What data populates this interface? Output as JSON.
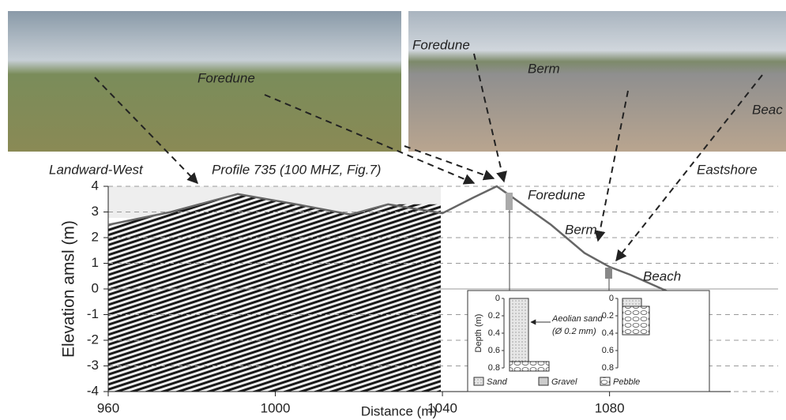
{
  "photos": [
    {
      "labels": [
        "Foredune"
      ]
    },
    {
      "labels": [
        "Foredune",
        "Berm",
        "Beac"
      ]
    }
  ],
  "chart_data": {
    "type": "line",
    "x_label": "Distance (m)",
    "y_label": "Elevation amsl (m)",
    "annotations": [
      "Landward-West",
      "Profile 735 (100 MHZ, Fig.7)",
      "Eastshore",
      "Foredune",
      "Berm",
      "Beach"
    ],
    "x": [
      960,
      975,
      991,
      1005,
      1018,
      1027,
      1040,
      1047.5,
      1053,
      1056,
      1066,
      1074,
      1080,
      1085,
      1102
    ],
    "values": [
      2.5,
      3.0,
      3.7,
      3.3,
      2.9,
      3.3,
      2.95,
      3.57,
      4.0,
      3.66,
      2.5,
      1.4,
      0.86,
      0.55,
      -0.68
    ],
    "color": "#666666",
    "xlim": [
      960,
      1109
    ],
    "xticks": [
      960,
      1000,
      1040,
      1080
    ],
    "ylim": [
      -4,
      4
    ],
    "yticks": [
      -4,
      -3,
      -2,
      -1,
      0,
      1,
      2,
      3,
      4
    ],
    "grid": true,
    "inset": {
      "y_label": "Depth (m)",
      "ylim": [
        0,
        0.8
      ],
      "yticks": [
        0,
        0.2,
        0.4,
        0.6,
        0.8
      ],
      "notes": [
        "Aeolian sand",
        "(Ø 0.2 mm)"
      ],
      "legend": [
        "Sand",
        "Gravel",
        "Pebble"
      ]
    }
  }
}
